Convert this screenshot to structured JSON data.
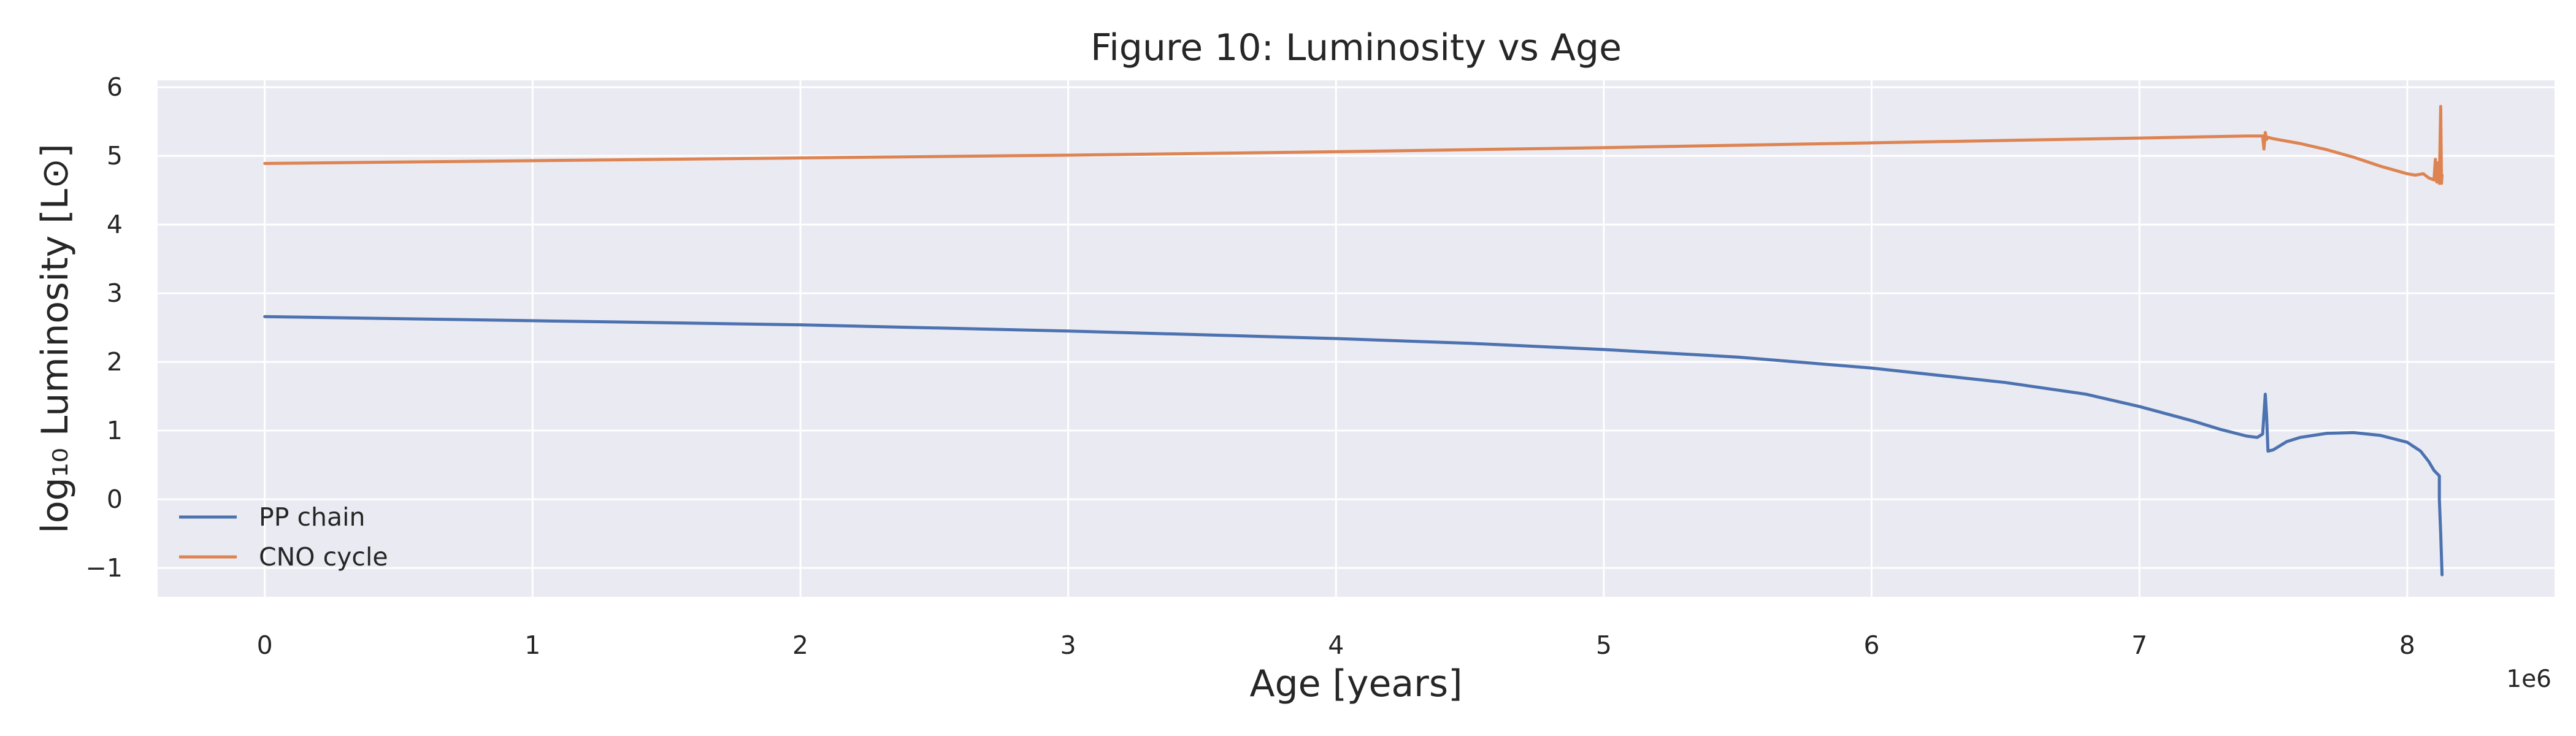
{
  "chart_data": {
    "type": "line",
    "title": "Figure 10: Luminosity vs Age",
    "xlabel": "Age [years]",
    "ylabel": "log₁₀ Luminosity [L⊙]",
    "x_offset_label": "1e6",
    "xlim": [
      -0.4,
      8.55
    ],
    "ylim": [
      -1.42,
      6.1
    ],
    "x_ticks": [
      0,
      1,
      2,
      3,
      4,
      5,
      6,
      7,
      8
    ],
    "x_tick_labels": [
      "0",
      "1",
      "2",
      "3",
      "4",
      "5",
      "6",
      "7",
      "8"
    ],
    "y_ticks": [
      -1,
      0,
      1,
      2,
      3,
      4,
      5,
      6
    ],
    "y_tick_labels": [
      "−1",
      "0",
      "1",
      "2",
      "3",
      "4",
      "5",
      "6"
    ],
    "grid": true,
    "legend_position": "lower-left",
    "series": [
      {
        "name": "PP chain",
        "color": "#4c72b0",
        "x": [
          0,
          1,
          2,
          3,
          4,
          4.5,
          5,
          5.5,
          6,
          6.5,
          6.8,
          7.0,
          7.2,
          7.3,
          7.4,
          7.44,
          7.46,
          7.47,
          7.475,
          7.48,
          7.5,
          7.55,
          7.6,
          7.7,
          7.8,
          7.9,
          7.95,
          8.0,
          8.05,
          8.08,
          8.1,
          8.11,
          8.12,
          8.12,
          8.125,
          8.13
        ],
        "y": [
          2.66,
          2.6,
          2.54,
          2.45,
          2.34,
          2.27,
          2.18,
          2.07,
          1.91,
          1.7,
          1.53,
          1.35,
          1.14,
          1.02,
          0.92,
          0.9,
          0.95,
          1.53,
          1.2,
          0.7,
          0.72,
          0.84,
          0.9,
          0.96,
          0.97,
          0.93,
          0.88,
          0.83,
          0.7,
          0.55,
          0.42,
          0.38,
          0.34,
          0.0,
          -0.5,
          -1.1
        ]
      },
      {
        "name": "CNO cycle",
        "color": "#dd8452",
        "x": [
          0,
          1,
          2,
          3,
          4,
          5,
          6,
          7,
          7.4,
          7.46,
          7.465,
          7.47,
          7.475,
          7.48,
          7.5,
          7.6,
          7.7,
          7.8,
          7.9,
          8.0,
          8.03,
          8.06,
          8.08,
          8.1,
          8.105,
          8.11,
          8.115,
          8.12,
          8.125,
          8.128,
          8.13
        ],
        "y": [
          4.89,
          4.93,
          4.97,
          5.01,
          5.06,
          5.12,
          5.19,
          5.26,
          5.29,
          5.29,
          5.1,
          5.34,
          5.24,
          5.27,
          5.25,
          5.18,
          5.09,
          4.98,
          4.85,
          4.74,
          4.72,
          4.74,
          4.68,
          4.65,
          4.95,
          4.62,
          4.9,
          4.6,
          5.72,
          4.6,
          4.72
        ]
      }
    ]
  }
}
